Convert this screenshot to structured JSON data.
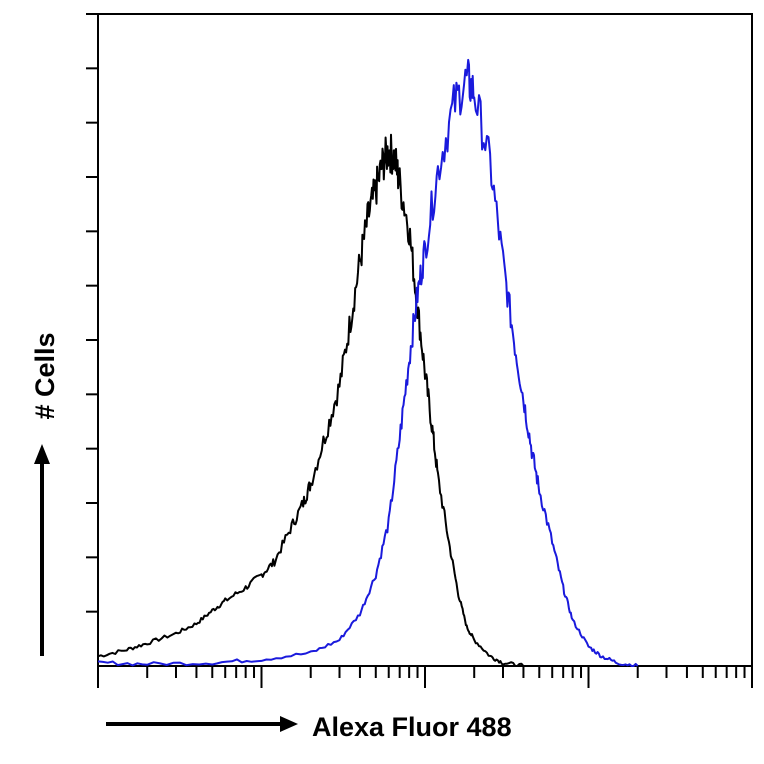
{
  "chart_data": {
    "type": "line",
    "title": "",
    "xlabel": "Alexa Fluor 488",
    "ylabel": "# Cells",
    "x_scale": "log",
    "xlim": [
      1,
      10000
    ],
    "ylim": [
      0,
      100
    ],
    "grid": false,
    "legend": "none",
    "series": [
      {
        "color": "#000000",
        "x": [
          1,
          1.5,
          2,
          3,
          4,
          5,
          6,
          8,
          10,
          12,
          15,
          18,
          20,
          25,
          30,
          35,
          40,
          45,
          50,
          55,
          60,
          65,
          70,
          80,
          90,
          100,
          110,
          120,
          140,
          160,
          180,
          200,
          250,
          300,
          400
        ],
        "y": [
          1.5,
          2.5,
          3.5,
          5,
          6.5,
          8.5,
          10,
          12,
          14,
          16,
          21,
          25,
          28,
          36,
          43,
          53,
          62,
          69,
          73,
          77,
          79,
          78,
          74,
          67,
          55,
          45,
          37,
          29,
          19,
          11,
          6,
          4,
          1.5,
          0.5,
          0
        ]
      },
      {
        "color": "#1a1adc",
        "x": [
          1,
          2,
          5,
          10,
          20,
          30,
          40,
          50,
          60,
          70,
          80,
          90,
          100,
          120,
          150,
          180,
          200,
          250,
          300,
          350,
          400,
          450,
          500,
          600,
          700,
          800,
          1000,
          1200,
          1500,
          2000
        ],
        "y": [
          0.5,
          0.3,
          0.5,
          1,
          2,
          4,
          8,
          14,
          22,
          35,
          47,
          57,
          64,
          76,
          86,
          90,
          88,
          77,
          62,
          50,
          41,
          33,
          27,
          19,
          12,
          7,
          3,
          1.5,
          0.5,
          0
        ]
      }
    ]
  }
}
